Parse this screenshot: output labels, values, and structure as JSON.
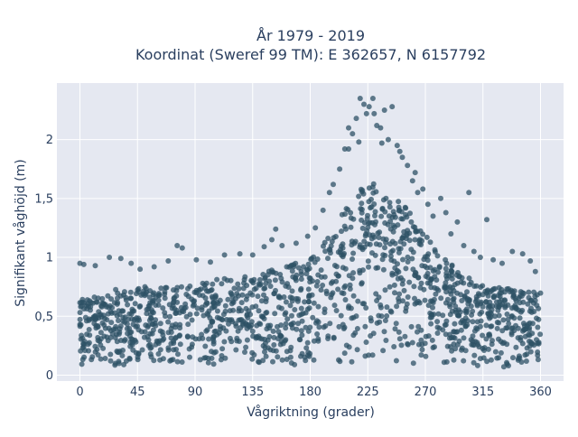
{
  "chart_data": {
    "type": "scatter",
    "title": "År 1979 - 2019",
    "subtitle": "Koordinat (Sweref 99 TM): E 362657, N 6157792",
    "xlabel": "Vågriktning (grader)",
    "ylabel": "Signifikant våghöjd (m)",
    "xlim": [
      -18,
      378
    ],
    "ylim": [
      -0.05,
      2.48
    ],
    "x_ticks": [
      0,
      45,
      90,
      135,
      180,
      225,
      270,
      315,
      360
    ],
    "x_tick_labels": [
      "0",
      "45",
      "90",
      "135",
      "180",
      "225",
      "270",
      "315",
      "360"
    ],
    "y_ticks": [
      0,
      0.5,
      1,
      1.5,
      2
    ],
    "y_tick_labels": [
      "0",
      "0,5",
      "1",
      "1,5",
      "2"
    ],
    "grid": true,
    "marker_color": "#2e5266",
    "marker_opacity": 0.75,
    "envelope": {
      "description": "dense point cloud: lower and upper bounds of the dense band by wave direction",
      "x": [
        0,
        20,
        45,
        70,
        90,
        110,
        135,
        160,
        180,
        200,
        215,
        225,
        235,
        250,
        265,
        280,
        300,
        315,
        330,
        345,
        360
      ],
      "y_low": [
        0.08,
        0.08,
        0.08,
        0.08,
        0.08,
        0.08,
        0.08,
        0.08,
        0.09,
        0.1,
        0.1,
        0.1,
        0.1,
        0.1,
        0.09,
        0.08,
        0.08,
        0.07,
        0.07,
        0.07,
        0.08
      ],
      "y_high": [
        0.65,
        0.72,
        0.75,
        0.76,
        0.78,
        0.82,
        0.86,
        0.92,
        1.0,
        1.3,
        1.55,
        1.65,
        1.62,
        1.5,
        1.3,
        1.05,
        0.85,
        0.78,
        0.74,
        0.72,
        0.7
      ]
    },
    "outliers": [
      {
        "x": 0,
        "y": 0.95
      },
      {
        "x": 3,
        "y": 0.94
      },
      {
        "x": 12,
        "y": 0.93
      },
      {
        "x": 23,
        "y": 1.0
      },
      {
        "x": 32,
        "y": 0.99
      },
      {
        "x": 40,
        "y": 0.95
      },
      {
        "x": 47,
        "y": 0.9
      },
      {
        "x": 58,
        "y": 0.92
      },
      {
        "x": 69,
        "y": 0.97
      },
      {
        "x": 76,
        "y": 1.1
      },
      {
        "x": 80,
        "y": 1.08
      },
      {
        "x": 91,
        "y": 0.98
      },
      {
        "x": 102,
        "y": 0.96
      },
      {
        "x": 113,
        "y": 1.02
      },
      {
        "x": 125,
        "y": 1.03
      },
      {
        "x": 135,
        "y": 1.02
      },
      {
        "x": 144,
        "y": 1.09
      },
      {
        "x": 150,
        "y": 1.15
      },
      {
        "x": 153,
        "y": 1.24
      },
      {
        "x": 158,
        "y": 1.1
      },
      {
        "x": 169,
        "y": 1.12
      },
      {
        "x": 178,
        "y": 1.18
      },
      {
        "x": 184,
        "y": 1.25
      },
      {
        "x": 190,
        "y": 1.4
      },
      {
        "x": 195,
        "y": 1.55
      },
      {
        "x": 198,
        "y": 1.62
      },
      {
        "x": 203,
        "y": 1.75
      },
      {
        "x": 207,
        "y": 1.92
      },
      {
        "x": 210,
        "y": 2.1
      },
      {
        "x": 213,
        "y": 2.05
      },
      {
        "x": 216,
        "y": 2.18
      },
      {
        "x": 219,
        "y": 2.35
      },
      {
        "x": 222,
        "y": 2.3
      },
      {
        "x": 224,
        "y": 2.22
      },
      {
        "x": 226,
        "y": 2.28
      },
      {
        "x": 229,
        "y": 2.35
      },
      {
        "x": 232,
        "y": 2.12
      },
      {
        "x": 235,
        "y": 2.1
      },
      {
        "x": 238,
        "y": 2.25
      },
      {
        "x": 241,
        "y": 2.0
      },
      {
        "x": 244,
        "y": 2.28
      },
      {
        "x": 248,
        "y": 1.95
      },
      {
        "x": 252,
        "y": 1.85
      },
      {
        "x": 256,
        "y": 1.78
      },
      {
        "x": 260,
        "y": 1.65
      },
      {
        "x": 264,
        "y": 1.55
      },
      {
        "x": 268,
        "y": 1.58
      },
      {
        "x": 272,
        "y": 1.45
      },
      {
        "x": 276,
        "y": 1.35
      },
      {
        "x": 282,
        "y": 1.5
      },
      {
        "x": 286,
        "y": 1.38
      },
      {
        "x": 290,
        "y": 1.2
      },
      {
        "x": 295,
        "y": 1.3
      },
      {
        "x": 300,
        "y": 1.1
      },
      {
        "x": 304,
        "y": 1.55
      },
      {
        "x": 308,
        "y": 1.05
      },
      {
        "x": 313,
        "y": 1.0
      },
      {
        "x": 318,
        "y": 1.32
      },
      {
        "x": 323,
        "y": 0.98
      },
      {
        "x": 330,
        "y": 0.95
      },
      {
        "x": 338,
        "y": 1.05
      },
      {
        "x": 346,
        "y": 1.03
      },
      {
        "x": 352,
        "y": 0.97
      },
      {
        "x": 356,
        "y": 0.88
      },
      {
        "x": 210,
        "y": 1.92
      },
      {
        "x": 218,
        "y": 1.98
      },
      {
        "x": 230,
        "y": 2.22
      },
      {
        "x": 236,
        "y": 1.97
      },
      {
        "x": 250,
        "y": 1.9
      },
      {
        "x": 262,
        "y": 1.72
      }
    ]
  }
}
